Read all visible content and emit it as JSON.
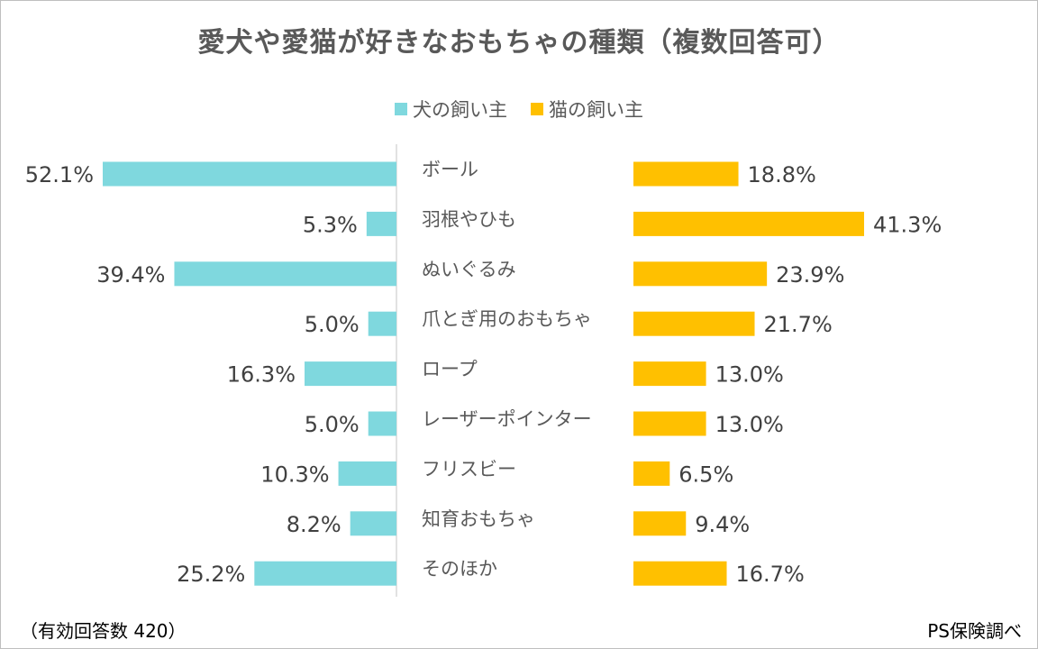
{
  "chart_data": {
    "type": "bar",
    "title": "愛犬や愛猫が好きなおもちゃの種類（複数回答可）",
    "categories": [
      "ボール",
      "羽根やひも",
      "ぬいぐるみ",
      "爪とぎ用のおもちゃ",
      "ロープ",
      "レーザーポインター",
      "フリスビー",
      "知育おもちゃ",
      "そのほか"
    ],
    "series": [
      {
        "name": "犬の飼い主",
        "color": "#7fd8de",
        "values": [
          52.1,
          5.3,
          39.4,
          5.0,
          16.3,
          5.0,
          10.3,
          8.2,
          25.2
        ],
        "labels": [
          "52.1%",
          "5.3%",
          "39.4%",
          "5.0%",
          "16.3%",
          "5.0%",
          "10.3%",
          "8.2%",
          "25.2%"
        ]
      },
      {
        "name": "猫の飼い主",
        "color": "#ffc000",
        "values": [
          18.8,
          41.3,
          23.9,
          21.7,
          13.0,
          13.0,
          6.5,
          9.4,
          16.7
        ],
        "labels": [
          "18.8%",
          "41.3%",
          "23.9%",
          "21.7%",
          "13.0%",
          "13.0%",
          "6.5%",
          "9.4%",
          "16.7%"
        ]
      }
    ],
    "unit": "%",
    "grid": false,
    "legend_position": "top-center"
  },
  "footer": {
    "note": "（有効回答数 420）",
    "source": "PS保険調べ"
  }
}
